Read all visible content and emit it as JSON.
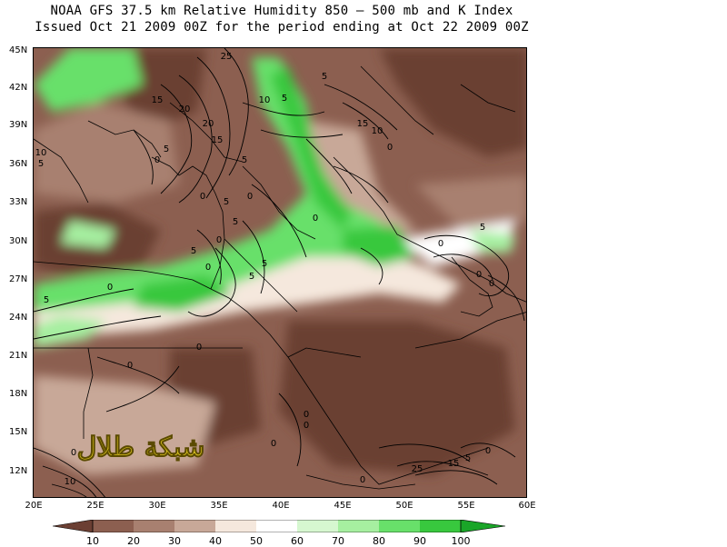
{
  "header": {
    "line1": "NOAA GFS 37.5 km Relative Humidity 850 – 500 mb and K Index",
    "line2": "Issued Oct 21 2009 00Z for the period ending at Oct 22 2009 00Z"
  },
  "map": {
    "lat_labels": [
      "45N",
      "42N",
      "39N",
      "36N",
      "33N",
      "30N",
      "27N",
      "24N",
      "21N",
      "18N",
      "15N",
      "12N"
    ],
    "lon_labels": [
      "20E",
      "25E",
      "30E",
      "35E",
      "40E",
      "45E",
      "50E",
      "55E",
      "60E"
    ],
    "contour_labels": [
      "25",
      "15",
      "20",
      "20",
      "15",
      "10",
      "5",
      "5",
      "15",
      "10",
      "0",
      "10",
      "5",
      "5",
      "0",
      "5",
      "0",
      "5",
      "0",
      "0",
      "5",
      "0",
      "5",
      "0",
      "5",
      "5",
      "0",
      "5",
      "0",
      "0",
      "0",
      "5",
      "0",
      "0",
      "0",
      "0",
      "0",
      "0",
      "10",
      "0",
      "25",
      "15",
      "5",
      "0"
    ]
  },
  "colorbar": {
    "labels": [
      "10",
      "20",
      "30",
      "40",
      "50",
      "60",
      "70",
      "80",
      "90",
      "100"
    ],
    "colors": [
      "#6b3f33",
      "#8c5f50",
      "#a88070",
      "#c8a898",
      "#f5e8dd",
      "#ffffff",
      "#d6f7d0",
      "#a6efa0",
      "#68e06a",
      "#38c83e",
      "#1aa528"
    ]
  },
  "watermark": {
    "text": "شبكة طلال"
  }
}
